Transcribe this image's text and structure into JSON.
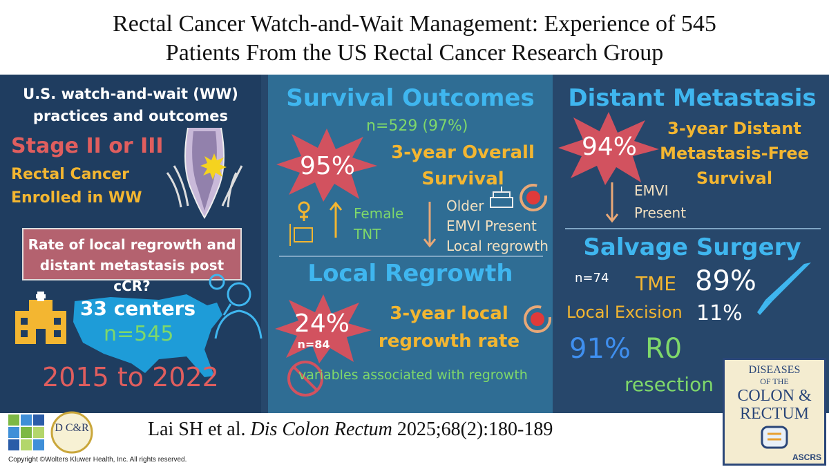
{
  "title_line1": "Rectal Cancer Watch-and-Wait Management: Experience of 545",
  "title_line2": "Patients From the US Rectal Cancer Research Group",
  "left": {
    "heading_line1": "U.S. watch-and-wait (WW)",
    "heading_line2": "practices and outcomes",
    "stage": "Stage II or III",
    "enrolled_line1": "Rectal Cancer",
    "enrolled_line2": "Enrolled in WW",
    "question_line1": "Rate of local regrowth and",
    "question_line2": "distant metastasis post cCR?",
    "centers": "33 centers",
    "n": "n=545",
    "years": "2015 to 2022"
  },
  "survival": {
    "heading": "Survival Outcomes",
    "n": "n=529 (97%)",
    "percent": "95%",
    "label_line1": "3-year Overall",
    "label_line2": "Survival",
    "up_1": "Female",
    "up_2": "TNT",
    "down_1": "Older",
    "down_2": "EMVI Present",
    "down_3": "Local regrowth"
  },
  "regrowth": {
    "heading": "Local Regrowth",
    "percent": "24%",
    "n": "n=84",
    "label_line1": "3-year local",
    "label_line2": "regrowth rate",
    "note": "variables associated with regrowth"
  },
  "metastasis": {
    "heading": "Distant Metastasis",
    "percent": "94%",
    "label_line1": "3-year Distant",
    "label_line2": "Metastasis-Free",
    "label_line3": "Survival",
    "down_1": "EMVI",
    "down_2": "Present"
  },
  "salvage": {
    "heading": "Salvage Surgery",
    "n": "n=74",
    "tme_label": "TME",
    "tme_pct": "89%",
    "le_label": "Local Excision",
    "le_pct": "11%",
    "r0_pct": "91%",
    "r0_label": "R0",
    "resection": "resection"
  },
  "citation_authors": "Lai SH et al.",
  "citation_journal": "Dis Colon Rectum",
  "citation_rest": "2025;68(2):180-189",
  "copyright": "Copyright ©Wolters Kluwer Health, Inc. All rights reserved.",
  "dcr_logo": "D C&R",
  "journal_cover": {
    "line1": "DISEASES",
    "line2": "OF THE",
    "line3": "COLON &",
    "line4": "RECTUM",
    "badge": "ASCRS"
  },
  "colors": {
    "band": "#27476b",
    "mid_panel": "#2f6d94",
    "heading_blue": "#3fb6ef",
    "orange": "#f3b631",
    "star_red": "#d2525f",
    "green": "#7fd86a"
  }
}
